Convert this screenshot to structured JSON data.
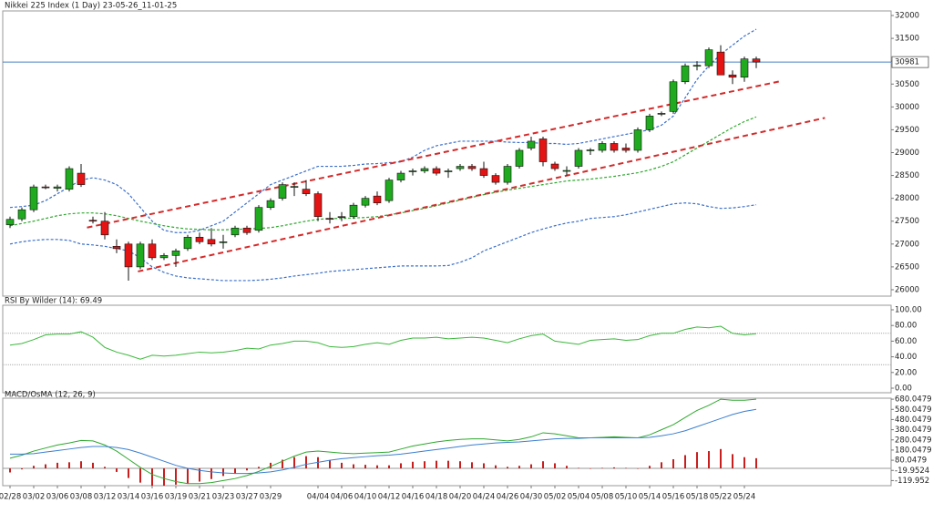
{
  "chart_data": [
    {
      "type": "candlestick",
      "title": "Nikkei 225 Index (1 Day) 23-05-26_11-01-25",
      "categories": [
        "02/28",
        null,
        "03/02",
        null,
        "03/06",
        null,
        "03/08",
        null,
        "03/12",
        null,
        "03/14",
        null,
        "03/16",
        null,
        "03/19",
        null,
        "03/21",
        null,
        "03/23",
        null,
        "03/27",
        null,
        "03/29",
        null,
        null,
        null,
        "04/04",
        null,
        "04/06",
        null,
        "04/10",
        null,
        "04/12",
        null,
        "04/16",
        null,
        "04/18",
        null,
        "04/20",
        null,
        "04/24",
        null,
        "04/26",
        null,
        "04/30",
        null,
        "05/02",
        null,
        "05/04",
        null,
        "05/08",
        null,
        "05/10",
        null,
        "05/14",
        null,
        "05/16",
        null,
        "05/18",
        null,
        "05/22",
        null,
        "05/24",
        null
      ],
      "open": [
        27420,
        27550,
        27750,
        28250,
        28220,
        28200,
        28550,
        27520,
        27500,
        26950,
        27000,
        26500,
        27000,
        26700,
        26750,
        26900,
        27150,
        27100,
        27050,
        27200,
        27350,
        27300,
        27800,
        28000,
        28250,
        28200,
        28100,
        27560,
        27600,
        27600,
        27850,
        28050,
        27950,
        28400,
        28580,
        28600,
        28650,
        28590,
        28650,
        28700,
        28650,
        28500,
        28350,
        28700,
        29100,
        29300,
        28750,
        28600,
        28700,
        29050,
        29050,
        29200,
        29100,
        29050,
        29500,
        29850,
        29900,
        30550,
        30900,
        30900,
        31200,
        30700,
        30650,
        31050
      ],
      "high": [
        27600,
        27800,
        28300,
        28300,
        28300,
        28700,
        28750,
        27600,
        27700,
        27100,
        27050,
        27050,
        27100,
        26800,
        26900,
        27200,
        27250,
        27350,
        27200,
        27400,
        27400,
        27850,
        28000,
        28350,
        28350,
        28400,
        28150,
        27700,
        27700,
        27900,
        28050,
        28150,
        28450,
        28600,
        28650,
        28700,
        28700,
        28650,
        28750,
        28750,
        28800,
        28550,
        28750,
        29100,
        29350,
        29350,
        28800,
        28700,
        29100,
        29100,
        29250,
        29250,
        29200,
        29550,
        29850,
        29900,
        30600,
        30950,
        31000,
        31300,
        31350,
        30800,
        31100,
        31100
      ],
      "low": [
        27350,
        27500,
        27700,
        28200,
        28150,
        28150,
        28250,
        27450,
        27100,
        26800,
        26200,
        26450,
        26650,
        26650,
        26500,
        26850,
        27000,
        26950,
        26900,
        27150,
        27200,
        27250,
        27750,
        27950,
        28050,
        28050,
        27500,
        27450,
        27500,
        27550,
        27800,
        27850,
        27900,
        28350,
        28500,
        28550,
        28500,
        28450,
        28600,
        28600,
        28450,
        28300,
        28300,
        28650,
        29050,
        28700,
        28600,
        28500,
        28650,
        28950,
        29000,
        29000,
        29000,
        29000,
        29450,
        29800,
        29850,
        30500,
        30800,
        30850,
        30700,
        30500,
        30550,
        30850
      ],
      "close": [
        27540,
        27750,
        28250,
        28230,
        28250,
        28650,
        28300,
        27500,
        27200,
        26900,
        26500,
        27000,
        26700,
        26750,
        26850,
        27150,
        27050,
        27000,
        27050,
        27350,
        27250,
        27800,
        27950,
        28300,
        28260,
        28100,
        27600,
        27550,
        27590,
        27850,
        28000,
        27900,
        28400,
        28550,
        28600,
        28650,
        28550,
        28600,
        28700,
        28650,
        28500,
        28350,
        28700,
        29050,
        29250,
        28800,
        28650,
        28610,
        29050,
        29060,
        29200,
        29050,
        29050,
        29500,
        29800,
        29860,
        30550,
        30900,
        30910,
        31250,
        30700,
        30650,
        31050,
        30981
      ],
      "up_color": "#1faa1f",
      "down_color": "#e41414",
      "overlays": [
        {
          "color": "#3b6fc9",
          "style": "dashed",
          "values": [
            27800,
            27820,
            27850,
            27950,
            28100,
            28250,
            28400,
            28450,
            28400,
            28300,
            28100,
            27800,
            27500,
            27300,
            27250,
            27250,
            27300,
            27400,
            27500,
            27700,
            27900,
            28100,
            28300,
            28400,
            28500,
            28600,
            28700,
            28700,
            28700,
            28720,
            28750,
            28760,
            28780,
            28800,
            28900,
            29050,
            29150,
            29200,
            29250,
            29250,
            29250,
            29250,
            29230,
            29220,
            29220,
            29200,
            29200,
            29180,
            29200,
            29250,
            29300,
            29350,
            29400,
            29450,
            29500,
            29600,
            29800,
            30200,
            30600,
            30900,
            31150,
            31350,
            31550,
            31700
          ]
        },
        {
          "color": "#2ea82e",
          "style": "dashed",
          "values": [
            27400,
            27450,
            27500,
            27560,
            27620,
            27660,
            27680,
            27680,
            27660,
            27620,
            27560,
            27500,
            27450,
            27400,
            27360,
            27330,
            27320,
            27310,
            27310,
            27320,
            27330,
            27340,
            27360,
            27400,
            27450,
            27500,
            27540,
            27560,
            27560,
            27570,
            27580,
            27600,
            27640,
            27680,
            27730,
            27780,
            27840,
            27900,
            27960,
            28020,
            28080,
            28130,
            28180,
            28220,
            28260,
            28300,
            28340,
            28380,
            28400,
            28420,
            28450,
            28480,
            28520,
            28560,
            28620,
            28700,
            28800,
            28950,
            29100,
            29250,
            29400,
            29550,
            29680,
            29780
          ]
        },
        {
          "color": "#3b6fc9",
          "style": "dashed",
          "values": [
            27000,
            27050,
            27080,
            27100,
            27100,
            27080,
            27000,
            26980,
            26950,
            26900,
            26850,
            26700,
            26500,
            26380,
            26300,
            26260,
            26240,
            26220,
            26200,
            26200,
            26200,
            26210,
            26230,
            26260,
            26300,
            26330,
            26360,
            26400,
            26420,
            26440,
            26460,
            26480,
            26500,
            26520,
            26520,
            26520,
            26520,
            26530,
            26600,
            26700,
            26850,
            26950,
            27050,
            27150,
            27250,
            27330,
            27400,
            27460,
            27500,
            27560,
            27580,
            27600,
            27640,
            27700,
            27760,
            27820,
            27880,
            27900,
            27880,
            27820,
            27780,
            27790,
            27820,
            27860
          ]
        }
      ],
      "trendlines": [
        {
          "x": [
            6.5,
            65
          ],
          "y": [
            27360,
            30560
          ]
        },
        {
          "x": [
            10.8,
            68.8
          ],
          "y": [
            26400,
            29760
          ]
        }
      ],
      "trendline_color": "#d42a2a",
      "last_price": 30981,
      "last_price_color": "#4a80c4",
      "ylim": [
        25860,
        32100
      ],
      "yticks": [
        26000,
        26500,
        27000,
        27500,
        28000,
        28500,
        29000,
        29500,
        30000,
        30500,
        31000,
        31500,
        32000
      ]
    },
    {
      "type": "line",
      "title": "RSI By Wilder (14): 69.49",
      "values": [
        55,
        57,
        62,
        68,
        69,
        69,
        72,
        65,
        52,
        46,
        42,
        37,
        42,
        41,
        42,
        44,
        46,
        45,
        46,
        48,
        51,
        50,
        55,
        57,
        60,
        60,
        58,
        53,
        52,
        53,
        56,
        58,
        56,
        61,
        64,
        64,
        65,
        63,
        64,
        65,
        64,
        61,
        58,
        63,
        67,
        69,
        60,
        58,
        56,
        61,
        62,
        63,
        61,
        62,
        67,
        70,
        70,
        75,
        78,
        77,
        79,
        70,
        68,
        69.49
      ],
      "color": "#3cb83c",
      "levels": [
        30,
        70
      ],
      "ylim": [
        0,
        100
      ],
      "yticks": [
        {
          "value": 0,
          "label": "0.00"
        },
        {
          "value": 20,
          "label": "20.00"
        },
        {
          "value": 40,
          "label": "40.00"
        },
        {
          "value": 60,
          "label": "60.00"
        },
        {
          "value": 80,
          "label": "80.00"
        },
        {
          "value": 100,
          "label": "100.00"
        }
      ]
    },
    {
      "type": "macd",
      "title": "MACD/OsMA (12, 26, 9)",
      "series": [
        {
          "color": "#2ea82e",
          "values": [
            100,
            130,
            170,
            200,
            230,
            250,
            275,
            270,
            230,
            170,
            90,
            10,
            -60,
            -100,
            -130,
            -150,
            -150,
            -140,
            -120,
            -100,
            -70,
            -30,
            20,
            70,
            120,
            160,
            170,
            160,
            150,
            145,
            150,
            155,
            160,
            190,
            220,
            240,
            260,
            275,
            285,
            290,
            290,
            280,
            270,
            285,
            310,
            350,
            340,
            320,
            300,
            300,
            305,
            310,
            305,
            300,
            330,
            380,
            430,
            500,
            570,
            620,
            680,
            670,
            670,
            680
          ]
        },
        {
          "color": "#3b7fd0",
          "values": [
            140,
            140,
            145,
            160,
            175,
            190,
            205,
            215,
            215,
            205,
            185,
            150,
            110,
            70,
            30,
            0,
            -20,
            -35,
            -45,
            -50,
            -50,
            -45,
            -35,
            -15,
            10,
            40,
            60,
            80,
            95,
            105,
            115,
            125,
            130,
            140,
            155,
            170,
            185,
            200,
            215,
            230,
            240,
            250,
            255,
            260,
            270,
            280,
            290,
            295,
            295,
            300,
            300,
            300,
            300,
            300,
            305,
            320,
            340,
            370,
            410,
            450,
            490,
            530,
            560,
            580
          ]
        }
      ],
      "histogram": {
        "color": "#c81e1e",
        "values": [
          -40,
          -10,
          25,
          40,
          55,
          60,
          70,
          55,
          15,
          -35,
          -95,
          -140,
          -170,
          -170,
          -160,
          -150,
          -130,
          -105,
          -75,
          -50,
          -20,
          15,
          55,
          85,
          110,
          120,
          110,
          80,
          55,
          40,
          35,
          30,
          30,
          50,
          65,
          70,
          75,
          75,
          70,
          60,
          50,
          30,
          15,
          25,
          40,
          70,
          50,
          25,
          5,
          0,
          5,
          10,
          5,
          0,
          25,
          60,
          90,
          130,
          160,
          170,
          190,
          140,
          110,
          100
        ]
      },
      "ylim": [
        -170,
        690
      ],
      "yticks": [
        680.0479,
        580.0479,
        480.0479,
        380.0479,
        280.0479,
        180.0479,
        80.0479,
        -19.9524,
        -119.952
      ]
    }
  ]
}
